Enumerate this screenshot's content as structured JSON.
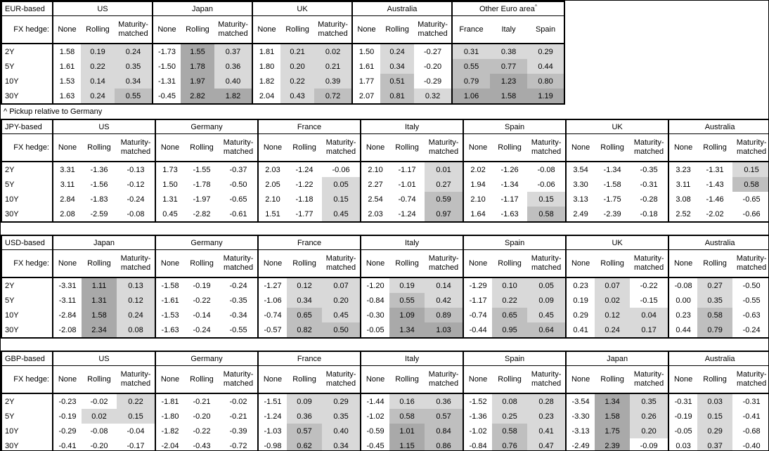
{
  "note": "^ Pickup relative to Germany",
  "hedge_label": "FX hedge:",
  "row_labels": [
    "2Y",
    "5Y",
    "10Y",
    "30Y"
  ],
  "subcols": [
    "None",
    "Rolling",
    "Maturity-matched"
  ],
  "colors": {
    "shade_low": "#d9d9d9",
    "shade_mid": "#bfbfbf",
    "shade_high": "#a9a9a9",
    "border": "#000000"
  },
  "shading_rule": {
    "low_bin": "0 to 0.5",
    "mid_bin": "0.5 to 1.0",
    "high_bin": "1.0 and above"
  },
  "tables": [
    {
      "base": "EUR-based",
      "groups": [
        {
          "name": "US",
          "rows": [
            [
              "1.58",
              "0.19",
              "0.24"
            ],
            [
              "1.61",
              "0.22",
              "0.35"
            ],
            [
              "1.53",
              "0.14",
              "0.34"
            ],
            [
              "1.63",
              "0.24",
              "0.55"
            ]
          ]
        },
        {
          "name": "Japan",
          "rows": [
            [
              "-1.73",
              "1.55",
              "0.37"
            ],
            [
              "-1.50",
              "1.78",
              "0.36"
            ],
            [
              "-1.31",
              "1.97",
              "0.40"
            ],
            [
              "-0.45",
              "2.82",
              "1.82"
            ]
          ]
        },
        {
          "name": "UK",
          "rows": [
            [
              "1.81",
              "0.21",
              "0.02"
            ],
            [
              "1.80",
              "0.20",
              "0.21"
            ],
            [
              "1.82",
              "0.22",
              "0.39"
            ],
            [
              "2.04",
              "0.43",
              "0.72"
            ]
          ]
        },
        {
          "name": "Australia",
          "rows": [
            [
              "1.50",
              "0.24",
              "-0.27"
            ],
            [
              "1.61",
              "0.34",
              "-0.20"
            ],
            [
              "1.77",
              "0.51",
              "-0.29"
            ],
            [
              "2.07",
              "0.81",
              "0.32"
            ]
          ]
        },
        {
          "name": "Other Euro area",
          "sup": "^",
          "all_shaded": true,
          "cols": [
            "France",
            "Italy",
            "Spain"
          ],
          "rows": [
            [
              "0.31",
              "0.38",
              "0.29"
            ],
            [
              "0.55",
              "0.77",
              "0.44"
            ],
            [
              "0.79",
              "1.23",
              "0.80"
            ],
            [
              "1.06",
              "1.58",
              "1.19"
            ]
          ]
        }
      ]
    },
    {
      "base": "JPY-based",
      "groups": [
        {
          "name": "US",
          "rows": [
            [
              "3.31",
              "-1.36",
              "-0.13"
            ],
            [
              "3.11",
              "-1.56",
              "-0.12"
            ],
            [
              "2.84",
              "-1.83",
              "-0.24"
            ],
            [
              "2.08",
              "-2.59",
              "-0.08"
            ]
          ]
        },
        {
          "name": "Germany",
          "rows": [
            [
              "1.73",
              "-1.55",
              "-0.37"
            ],
            [
              "1.50",
              "-1.78",
              "-0.50"
            ],
            [
              "1.31",
              "-1.97",
              "-0.65"
            ],
            [
              "0.45",
              "-2.82",
              "-0.61"
            ]
          ]
        },
        {
          "name": "France",
          "rows": [
            [
              "2.03",
              "-1.24",
              "-0.06"
            ],
            [
              "2.05",
              "-1.22",
              "0.05"
            ],
            [
              "2.10",
              "-1.18",
              "0.15"
            ],
            [
              "1.51",
              "-1.77",
              "0.45"
            ]
          ]
        },
        {
          "name": "Italy",
          "rows": [
            [
              "2.10",
              "-1.17",
              "0.01"
            ],
            [
              "2.27",
              "-1.01",
              "0.27"
            ],
            [
              "2.54",
              "-0.74",
              "0.59"
            ],
            [
              "2.03",
              "-1.24",
              "0.97"
            ]
          ]
        },
        {
          "name": "Spain",
          "rows": [
            [
              "2.02",
              "-1.26",
              "-0.08"
            ],
            [
              "1.94",
              "-1.34",
              "-0.06"
            ],
            [
              "2.10",
              "-1.17",
              "0.15"
            ],
            [
              "1.64",
              "-1.63",
              "0.58"
            ]
          ]
        },
        {
          "name": "UK",
          "rows": [
            [
              "3.54",
              "-1.34",
              "-0.35"
            ],
            [
              "3.30",
              "-1.58",
              "-0.31"
            ],
            [
              "3.13",
              "-1.75",
              "-0.28"
            ],
            [
              "2.49",
              "-2.39",
              "-0.18"
            ]
          ]
        },
        {
          "name": "Australia",
          "rows": [
            [
              "3.23",
              "-1.31",
              "0.15"
            ],
            [
              "3.11",
              "-1.43",
              "0.58"
            ],
            [
              "3.08",
              "-1.46",
              "-0.65"
            ],
            [
              "2.52",
              "-2.02",
              "-0.66"
            ]
          ]
        }
      ]
    },
    {
      "base": "USD-based",
      "groups": [
        {
          "name": "Japan",
          "rows": [
            [
              "-3.31",
              "1.11",
              "0.13"
            ],
            [
              "-3.11",
              "1.31",
              "0.12"
            ],
            [
              "-2.84",
              "1.58",
              "0.24"
            ],
            [
              "-2.08",
              "2.34",
              "0.08"
            ]
          ]
        },
        {
          "name": "Germany",
          "rows": [
            [
              "-1.58",
              "-0.19",
              "-0.24"
            ],
            [
              "-1.61",
              "-0.22",
              "-0.35"
            ],
            [
              "-1.53",
              "-0.14",
              "-0.34"
            ],
            [
              "-1.63",
              "-0.24",
              "-0.55"
            ]
          ]
        },
        {
          "name": "France",
          "rows": [
            [
              "-1.27",
              "0.12",
              "0.07"
            ],
            [
              "-1.06",
              "0.34",
              "0.20"
            ],
            [
              "-0.74",
              "0.65",
              "0.45"
            ],
            [
              "-0.57",
              "0.82",
              "0.50"
            ]
          ]
        },
        {
          "name": "Italy",
          "rows": [
            [
              "-1.20",
              "0.19",
              "0.14"
            ],
            [
              "-0.84",
              "0.55",
              "0.42"
            ],
            [
              "-0.30",
              "1.09",
              "0.89"
            ],
            [
              "-0.05",
              "1.34",
              "1.03"
            ]
          ]
        },
        {
          "name": "Spain",
          "rows": [
            [
              "-1.29",
              "0.10",
              "0.05"
            ],
            [
              "-1.17",
              "0.22",
              "0.09"
            ],
            [
              "-0.74",
              "0.65",
              "0.45"
            ],
            [
              "-0.44",
              "0.95",
              "0.64"
            ]
          ]
        },
        {
          "name": "UK",
          "rows": [
            [
              "0.23",
              "0.07",
              "-0.22"
            ],
            [
              "0.19",
              "0.02",
              "-0.15"
            ],
            [
              "0.29",
              "0.12",
              "0.04"
            ],
            [
              "0.41",
              "0.24",
              "0.17"
            ]
          ]
        },
        {
          "name": "Australia",
          "rows": [
            [
              "-0.08",
              "0.27",
              "-0.50"
            ],
            [
              "0.00",
              "0.35",
              "-0.55"
            ],
            [
              "0.23",
              "0.58",
              "-0.63"
            ],
            [
              "0.44",
              "0.79",
              "-0.24"
            ]
          ]
        }
      ]
    },
    {
      "base": "GBP-based",
      "groups": [
        {
          "name": "US",
          "rows": [
            [
              "-0.23",
              "-0.02",
              "0.22"
            ],
            [
              "-0.19",
              "0.02",
              "0.15"
            ],
            [
              "-0.29",
              "-0.08",
              "-0.04"
            ],
            [
              "-0.41",
              "-0.20",
              "-0.17"
            ]
          ]
        },
        {
          "name": "Germany",
          "rows": [
            [
              "-1.81",
              "-0.21",
              "-0.02"
            ],
            [
              "-1.80",
              "-0.20",
              "-0.21"
            ],
            [
              "-1.82",
              "-0.22",
              "-0.39"
            ],
            [
              "-2.04",
              "-0.43",
              "-0.72"
            ]
          ]
        },
        {
          "name": "France",
          "rows": [
            [
              "-1.51",
              "0.09",
              "0.29"
            ],
            [
              "-1.24",
              "0.36",
              "0.35"
            ],
            [
              "-1.03",
              "0.57",
              "0.40"
            ],
            [
              "-0.98",
              "0.62",
              "0.34"
            ]
          ]
        },
        {
          "name": "Italy",
          "rows": [
            [
              "-1.44",
              "0.16",
              "0.36"
            ],
            [
              "-1.02",
              "0.58",
              "0.57"
            ],
            [
              "-0.59",
              "1.01",
              "0.84"
            ],
            [
              "-0.45",
              "1.15",
              "0.86"
            ]
          ]
        },
        {
          "name": "Spain",
          "rows": [
            [
              "-1.52",
              "0.08",
              "0.28"
            ],
            [
              "-1.36",
              "0.25",
              "0.23"
            ],
            [
              "-1.02",
              "0.58",
              "0.41"
            ],
            [
              "-0.84",
              "0.76",
              "0.47"
            ]
          ]
        },
        {
          "name": "Japan",
          "rows": [
            [
              "-3.54",
              "1.34",
              "0.35"
            ],
            [
              "-3.30",
              "1.58",
              "0.26"
            ],
            [
              "-3.13",
              "1.75",
              "0.20"
            ],
            [
              "-2.49",
              "2.39",
              "-0.09"
            ]
          ]
        },
        {
          "name": "Australia",
          "rows": [
            [
              "-0.31",
              "0.03",
              "-0.31"
            ],
            [
              "-0.19",
              "0.15",
              "-0.41"
            ],
            [
              "-0.05",
              "0.29",
              "-0.68"
            ],
            [
              "0.03",
              "0.37",
              "-0.40"
            ]
          ]
        }
      ]
    }
  ]
}
